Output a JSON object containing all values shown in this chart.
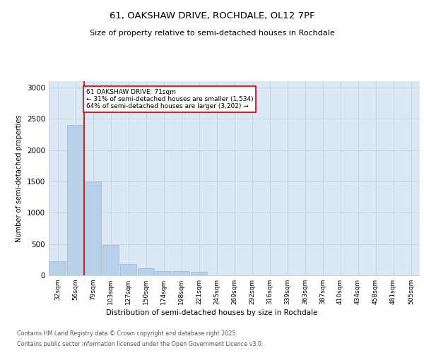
{
  "title_line1": "61, OAKSHAW DRIVE, ROCHDALE, OL12 7PF",
  "title_line2": "Size of property relative to semi-detached houses in Rochdale",
  "xlabel": "Distribution of semi-detached houses by size in Rochdale",
  "ylabel": "Number of semi-detached properties",
  "categories": [
    "32sqm",
    "56sqm",
    "79sqm",
    "103sqm",
    "127sqm",
    "150sqm",
    "174sqm",
    "198sqm",
    "221sqm",
    "245sqm",
    "269sqm",
    "292sqm",
    "316sqm",
    "339sqm",
    "363sqm",
    "387sqm",
    "410sqm",
    "434sqm",
    "458sqm",
    "481sqm",
    "505sqm"
  ],
  "values": [
    230,
    2400,
    1500,
    480,
    185,
    110,
    70,
    65,
    60,
    5,
    0,
    0,
    0,
    0,
    0,
    0,
    0,
    0,
    0,
    0,
    0
  ],
  "bar_color": "#b8d0e8",
  "bar_edge_color": "#90b8d8",
  "grid_color": "#c8d4e4",
  "bg_color": "#dce8f4",
  "annotation_text": "61 OAKSHAW DRIVE: 71sqm\n← 31% of semi-detached houses are smaller (1,534)\n64% of semi-detached houses are larger (3,202) →",
  "annotation_box_color": "#ffffff",
  "annotation_box_edge": "#cc0000",
  "annotation_text_color": "#000000",
  "footer_line1": "Contains HM Land Registry data © Crown copyright and database right 2025.",
  "footer_line2": "Contains public sector information licensed under the Open Government Licence v3.0.",
  "ylim": [
    0,
    3100
  ],
  "yticks": [
    0,
    500,
    1000,
    1500,
    2000,
    2500,
    3000
  ]
}
